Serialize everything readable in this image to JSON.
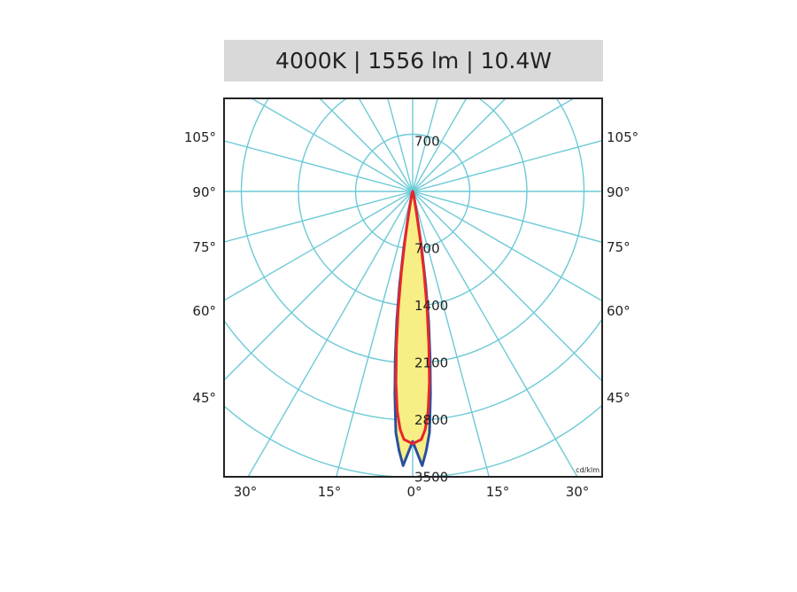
{
  "header": {
    "title": "4000K | 1556 lm | 10.4W"
  },
  "chart_data": {
    "type": "polar",
    "unit": "cd/klm",
    "rings": [
      700,
      1400,
      2100,
      2800,
      3500
    ],
    "upper_ring_label": "700",
    "left_angle_labels": [
      "105°",
      "90°",
      "75°",
      "60°",
      "45°"
    ],
    "right_angle_labels": [
      "105°",
      "90°",
      "75°",
      "60°",
      "45°"
    ],
    "bottom_angle_labels": [
      "30°",
      "15°",
      "0°",
      "15°",
      "30°"
    ],
    "grid": true,
    "series": [
      {
        "color": "#2b4f9e",
        "fill": "#f7ee86",
        "points": [
          [
            -2,
            3360
          ],
          [
            -3,
            3180
          ],
          [
            -4,
            2960
          ],
          [
            -5,
            2500
          ],
          [
            -6,
            2050
          ],
          [
            -7,
            1600
          ],
          [
            -8,
            1150
          ],
          [
            -9,
            700
          ],
          [
            -10,
            350
          ],
          [
            -12,
            120
          ],
          [
            -20,
            25
          ],
          [
            -90,
            0
          ],
          [
            20,
            25
          ],
          [
            12,
            120
          ],
          [
            10,
            350
          ],
          [
            9,
            700
          ],
          [
            8,
            1150
          ],
          [
            7,
            1600
          ],
          [
            6,
            2050
          ],
          [
            5,
            2500
          ],
          [
            4,
            2960
          ],
          [
            3,
            3180
          ],
          [
            2,
            3360
          ],
          [
            0,
            3060
          ]
        ]
      },
      {
        "color": "#e8262a",
        "fill": "none",
        "points": [
          [
            0,
            3090
          ],
          [
            -2,
            3040
          ],
          [
            -3,
            2920
          ],
          [
            -4,
            2700
          ],
          [
            -5,
            2350
          ],
          [
            -6,
            1900
          ],
          [
            -7,
            1450
          ],
          [
            -8,
            1000
          ],
          [
            -9,
            600
          ],
          [
            -10,
            300
          ],
          [
            -12,
            110
          ],
          [
            -20,
            20
          ],
          [
            -90,
            0
          ],
          [
            20,
            20
          ],
          [
            12,
            110
          ],
          [
            10,
            300
          ],
          [
            9,
            600
          ],
          [
            8,
            1000
          ],
          [
            7,
            1450
          ],
          [
            6,
            1900
          ],
          [
            5,
            2350
          ],
          [
            4,
            2700
          ],
          [
            3,
            2920
          ],
          [
            2,
            3040
          ],
          [
            0,
            3090
          ]
        ]
      }
    ]
  },
  "colors": {
    "grid": "#6ccad6",
    "frame": "#222222",
    "header_bg": "#d9d9d9"
  }
}
